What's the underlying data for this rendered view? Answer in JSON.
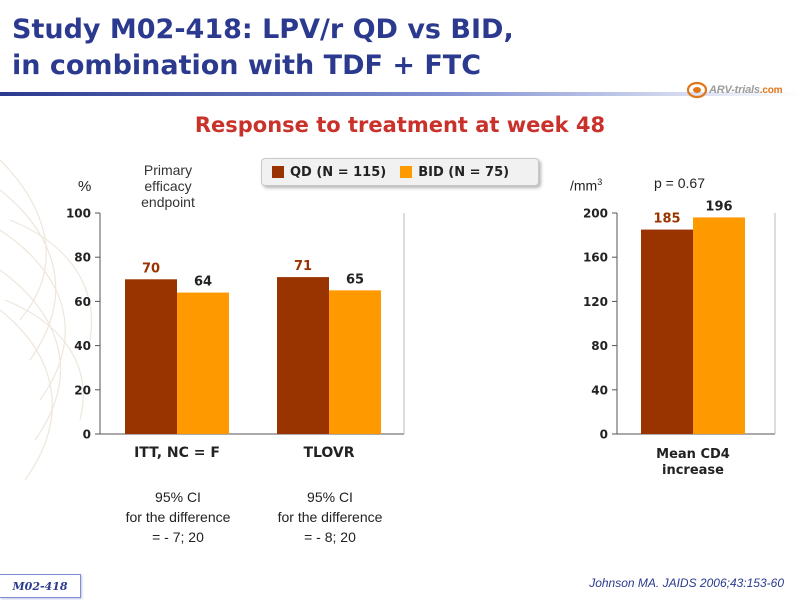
{
  "header": {
    "title_line1": "Study M02-418: LPV/r QD vs BID,",
    "title_line2": "in combination with TDF + FTC",
    "logo_text": "ARV-trials",
    "logo_suffix": ".com"
  },
  "subtitle": "Response to treatment at week 48",
  "legend": [
    {
      "label": "QD (N = 115)",
      "color": "#993300"
    },
    {
      "label": "BID (N = 75)",
      "color": "#ff9900"
    }
  ],
  "left_panel": {
    "ylabel": "%",
    "primary_endpoint_note": [
      "Primary",
      "efficacy",
      "endpoint"
    ],
    "ci_notes": [
      [
        "95% CI",
        "for the difference",
        "= - 7; 20"
      ],
      [
        "95% CI",
        "for the difference",
        "= - 8; 20"
      ]
    ]
  },
  "right_panel": {
    "ylabel": "/mm",
    "ylabel_sup": "3",
    "pvalue": "p = 0.67"
  },
  "footer": {
    "reference": "Johnson MA. JAIDS 2006;43:153-60",
    "tag": "M02-418"
  },
  "chart_data": [
    {
      "type": "bar",
      "categories": [
        "ITT, NC = F",
        "TLOVR"
      ],
      "series": [
        {
          "name": "QD (N = 115)",
          "values": [
            70,
            71
          ],
          "color": "#993300"
        },
        {
          "name": "BID (N = 75)",
          "values": [
            64,
            65
          ],
          "color": "#ff9900"
        }
      ],
      "ylim": [
        0,
        100
      ],
      "yticks": [
        0,
        20,
        40,
        60,
        80,
        100
      ],
      "ylabel": "%",
      "grid": false
    },
    {
      "type": "bar",
      "categories": [
        "Mean CD4\nincrease"
      ],
      "series": [
        {
          "name": "QD (N = 115)",
          "values": [
            185
          ],
          "color": "#993300"
        },
        {
          "name": "BID (N = 75)",
          "values": [
            196
          ],
          "color": "#ff9900"
        }
      ],
      "ylim": [
        0,
        200
      ],
      "yticks": [
        0,
        40,
        80,
        120,
        160,
        200
      ],
      "ylabel": "/mm3",
      "grid": false
    }
  ]
}
